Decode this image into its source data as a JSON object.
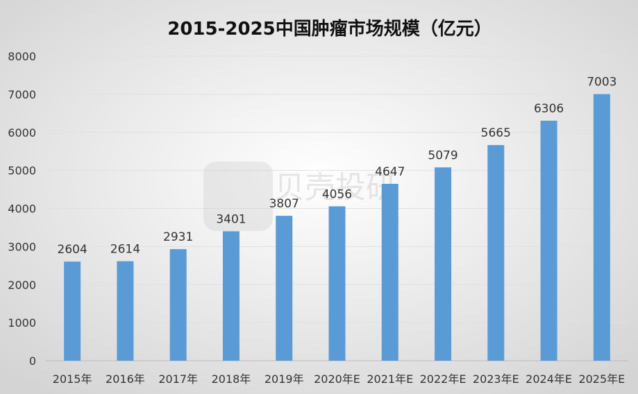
{
  "chart_data": {
    "type": "bar",
    "title": "2015-2025中国肿瘤市场规模（亿元）",
    "categories": [
      "2015年",
      "2016年",
      "2017年",
      "2018年",
      "2019年",
      "2020年E",
      "2021年E",
      "2022年E",
      "2023年E",
      "2024年E",
      "2025年E"
    ],
    "values": [
      2604,
      2614,
      2931,
      3401,
      3807,
      4056,
      4647,
      5079,
      5665,
      6306,
      7003
    ],
    "ylim": [
      0,
      8000
    ],
    "yticks": [
      0,
      1000,
      2000,
      3000,
      4000,
      5000,
      6000,
      7000,
      8000
    ],
    "grid": true,
    "data_labels": true,
    "bar_color": "#5b9bd5",
    "xlabel": "",
    "ylabel": ""
  },
  "watermark": {
    "brand": "贝壳投研"
  }
}
